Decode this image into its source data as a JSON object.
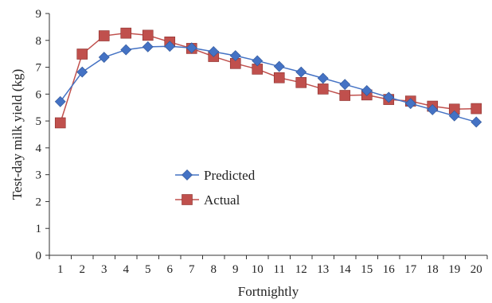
{
  "chart_data": {
    "type": "line",
    "title": "",
    "xlabel": "Fortnightly",
    "ylabel": "Test-day milk yield (kg)",
    "ylim": [
      0,
      9
    ],
    "yticks": [
      "0",
      "1",
      "2",
      "3",
      "4",
      "5",
      "6",
      "7",
      "8",
      "9"
    ],
    "categories": [
      "1",
      "2",
      "3",
      "4",
      "5",
      "6",
      "7",
      "8",
      "9",
      "10",
      "11",
      "12",
      "13",
      "14",
      "15",
      "16",
      "17",
      "18",
      "19",
      "20"
    ],
    "grid": false,
    "legend_position": "center-left",
    "series": [
      {
        "name": "Predicted",
        "marker": "diamond",
        "color": "#4472C4",
        "values": [
          5.72,
          6.82,
          7.37,
          7.65,
          7.76,
          7.78,
          7.72,
          7.58,
          7.43,
          7.24,
          7.03,
          6.82,
          6.59,
          6.36,
          6.13,
          5.88,
          5.65,
          5.42,
          5.19,
          4.96
        ]
      },
      {
        "name": "Actual",
        "marker": "square",
        "color": "#C0504D",
        "values": [
          4.93,
          7.49,
          8.17,
          8.27,
          8.19,
          7.94,
          7.7,
          7.4,
          7.14,
          6.93,
          6.61,
          6.43,
          6.19,
          5.95,
          5.97,
          5.8,
          5.74,
          5.55,
          5.44,
          5.46
        ]
      }
    ]
  }
}
